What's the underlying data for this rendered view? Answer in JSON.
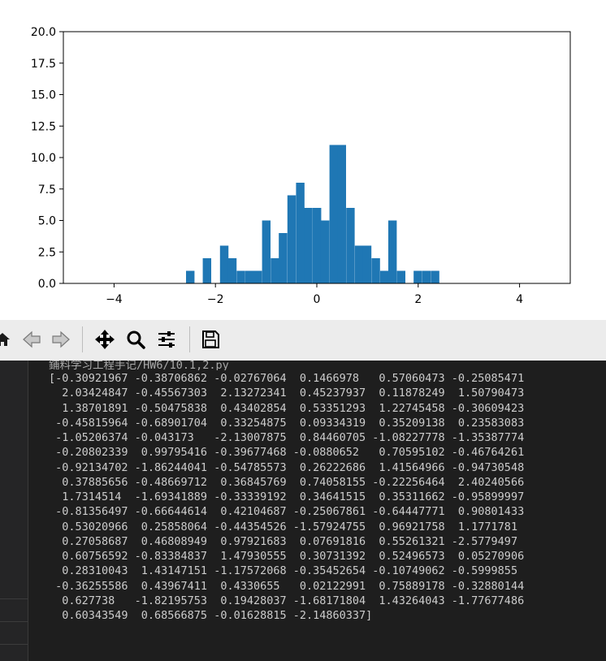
{
  "chart_data": {
    "type": "bar",
    "xlim": [
      -5,
      5
    ],
    "ylim": [
      0,
      20
    ],
    "x_ticks": [
      -4,
      -2,
      0,
      2,
      4
    ],
    "x_tick_labels": [
      "−4",
      "−2",
      "0",
      "2",
      "4"
    ],
    "y_ticks": [
      0,
      2.5,
      5,
      7.5,
      10,
      12.5,
      15,
      17.5,
      20
    ],
    "y_tick_labels": [
      "0.0",
      "2.5",
      "5.0",
      "7.5",
      "10.0",
      "12.5",
      "15.0",
      "17.5",
      "20.0"
    ],
    "bin_width": 0.167,
    "bins": [
      {
        "x": -2.58,
        "value": 1
      },
      {
        "x": -2.25,
        "value": 2
      },
      {
        "x": -1.91,
        "value": 3
      },
      {
        "x": -1.75,
        "value": 2
      },
      {
        "x": -1.58,
        "value": 1
      },
      {
        "x": -1.41,
        "value": 1
      },
      {
        "x": -1.25,
        "value": 1
      },
      {
        "x": -1.08,
        "value": 5
      },
      {
        "x": -0.91,
        "value": 2
      },
      {
        "x": -0.75,
        "value": 4
      },
      {
        "x": -0.58,
        "value": 7
      },
      {
        "x": -0.41,
        "value": 8
      },
      {
        "x": -0.25,
        "value": 6
      },
      {
        "x": -0.08,
        "value": 6
      },
      {
        "x": 0.08,
        "value": 5
      },
      {
        "x": 0.25,
        "value": 11
      },
      {
        "x": 0.41,
        "value": 11
      },
      {
        "x": 0.58,
        "value": 6
      },
      {
        "x": 0.75,
        "value": 3
      },
      {
        "x": 0.91,
        "value": 3
      },
      {
        "x": 1.08,
        "value": 2
      },
      {
        "x": 1.25,
        "value": 1
      },
      {
        "x": 1.41,
        "value": 5
      },
      {
        "x": 1.58,
        "value": 1
      },
      {
        "x": 1.91,
        "value": 1
      },
      {
        "x": 2.08,
        "value": 1
      },
      {
        "x": 2.25,
        "value": 1
      }
    ],
    "bar_color": "#1f77b4",
    "grid": false
  },
  "toolbar": {
    "buttons": [
      {
        "name": "home-button",
        "icon": "home-icon"
      },
      {
        "name": "back-button",
        "icon": "left-arrow-icon"
      },
      {
        "name": "forward-button",
        "icon": "right-arrow-icon"
      },
      {
        "name": "pan-button",
        "icon": "move-arrows-icon"
      },
      {
        "name": "zoom-button",
        "icon": "magnifier-icon"
      },
      {
        "name": "configure-subplots-button",
        "icon": "sliders-icon"
      },
      {
        "name": "save-button",
        "icon": "floppy-disk-icon"
      }
    ]
  },
  "terminal": {
    "header": "鋪料学习工程手记/HW6/10.1,2.py",
    "lines": [
      "[-0.30921967 -0.38706862 -0.02767064  0.1466978   0.57060473 -0.25085471",
      "  2.03424847 -0.45567303  2.13272341  0.45237937  0.11878249  1.50790473",
      "  1.38701891 -0.50475838  0.43402854  0.53351293  1.22745458 -0.30609423",
      " -0.45815964 -0.68901704  0.33254875  0.09334319  0.35209138  0.23583083",
      " -1.05206374 -0.043173   -2.13007875  0.84460705 -1.08227778 -1.35387774",
      " -0.20802339  0.99795416 -0.39677468 -0.0880652   0.70595102 -0.46764261",
      " -0.92134702 -1.86244041 -0.54785573  0.26222686  1.41564966 -0.94730548",
      "  0.37885656 -0.48669712  0.36845769  0.74058155 -0.22256464  2.40240566",
      "  1.7314514  -1.69341889 -0.33339192  0.34641515  0.35311662 -0.95899997",
      " -0.81356497 -0.66644614  0.42104687 -0.25067861 -0.64447771  0.90801433",
      "  0.53020966  0.25858064 -0.44354526 -1.57924755  0.96921758  1.1771781",
      "  0.27058687  0.46808949  0.97921683  0.07691816  0.55261321 -2.5779497",
      "  0.60756592 -0.83384837  1.47930555  0.30731392  0.52496573  0.05270906",
      "  0.28310043  1.43147151 -1.17572068 -0.35452654 -0.10749062 -0.5999855",
      " -0.36255586  0.43967411  0.4330655   0.02122991  0.75889178 -0.32880144",
      "  0.627738   -1.82195753  0.19428037 -1.68171804  1.43264043 -1.77677486",
      "  0.60343549  0.68566875 -0.01628815 -2.14860337]"
    ]
  }
}
